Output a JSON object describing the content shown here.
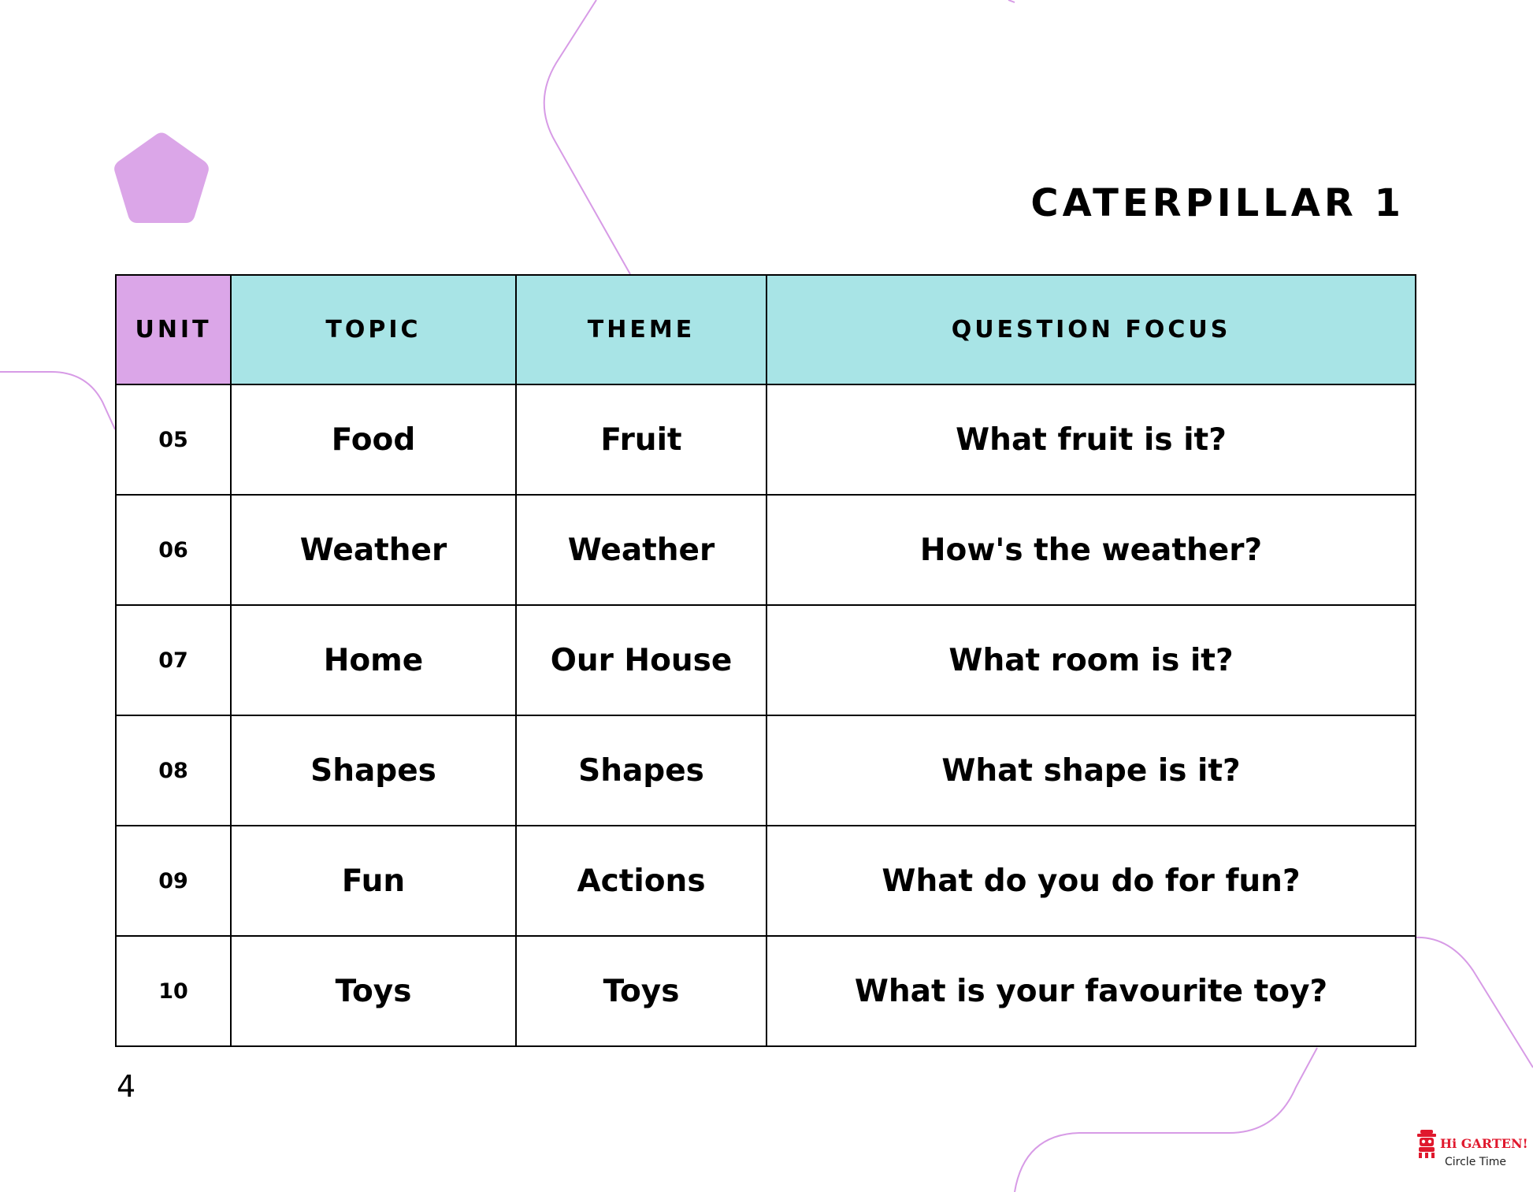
{
  "title": "CATERPILLAR 1",
  "table": {
    "headers": {
      "unit": "UNIT",
      "topic": "TOPIC",
      "theme": "THEME",
      "question": "QUESTION FOCUS"
    },
    "rows": [
      {
        "unit": "05",
        "topic": "Food",
        "theme": "Fruit",
        "question": "What fruit is it?"
      },
      {
        "unit": "06",
        "topic": "Weather",
        "theme": "Weather",
        "question": "How's the weather?"
      },
      {
        "unit": "07",
        "topic": "Home",
        "theme": "Our House",
        "question": "What room is it?"
      },
      {
        "unit": "08",
        "topic": "Shapes",
        "theme": "Shapes",
        "question": "What shape is it?"
      },
      {
        "unit": "09",
        "topic": "Fun",
        "theme": "Actions",
        "question": "What do you do for fun?"
      },
      {
        "unit": "10",
        "topic": "Toys",
        "theme": "Toys",
        "question": "What is your favourite toy?"
      }
    ]
  },
  "page_number": "4",
  "logo": {
    "brand": "Hi GARTEN!",
    "subtitle": "Circle Time"
  },
  "colors": {
    "header_unit_bg": "#dba6e8",
    "header_bg": "#a8e4e6",
    "pentagon": "#dba6e8",
    "deco_lines": "#d79be6",
    "logo_red": "#e0182d"
  }
}
